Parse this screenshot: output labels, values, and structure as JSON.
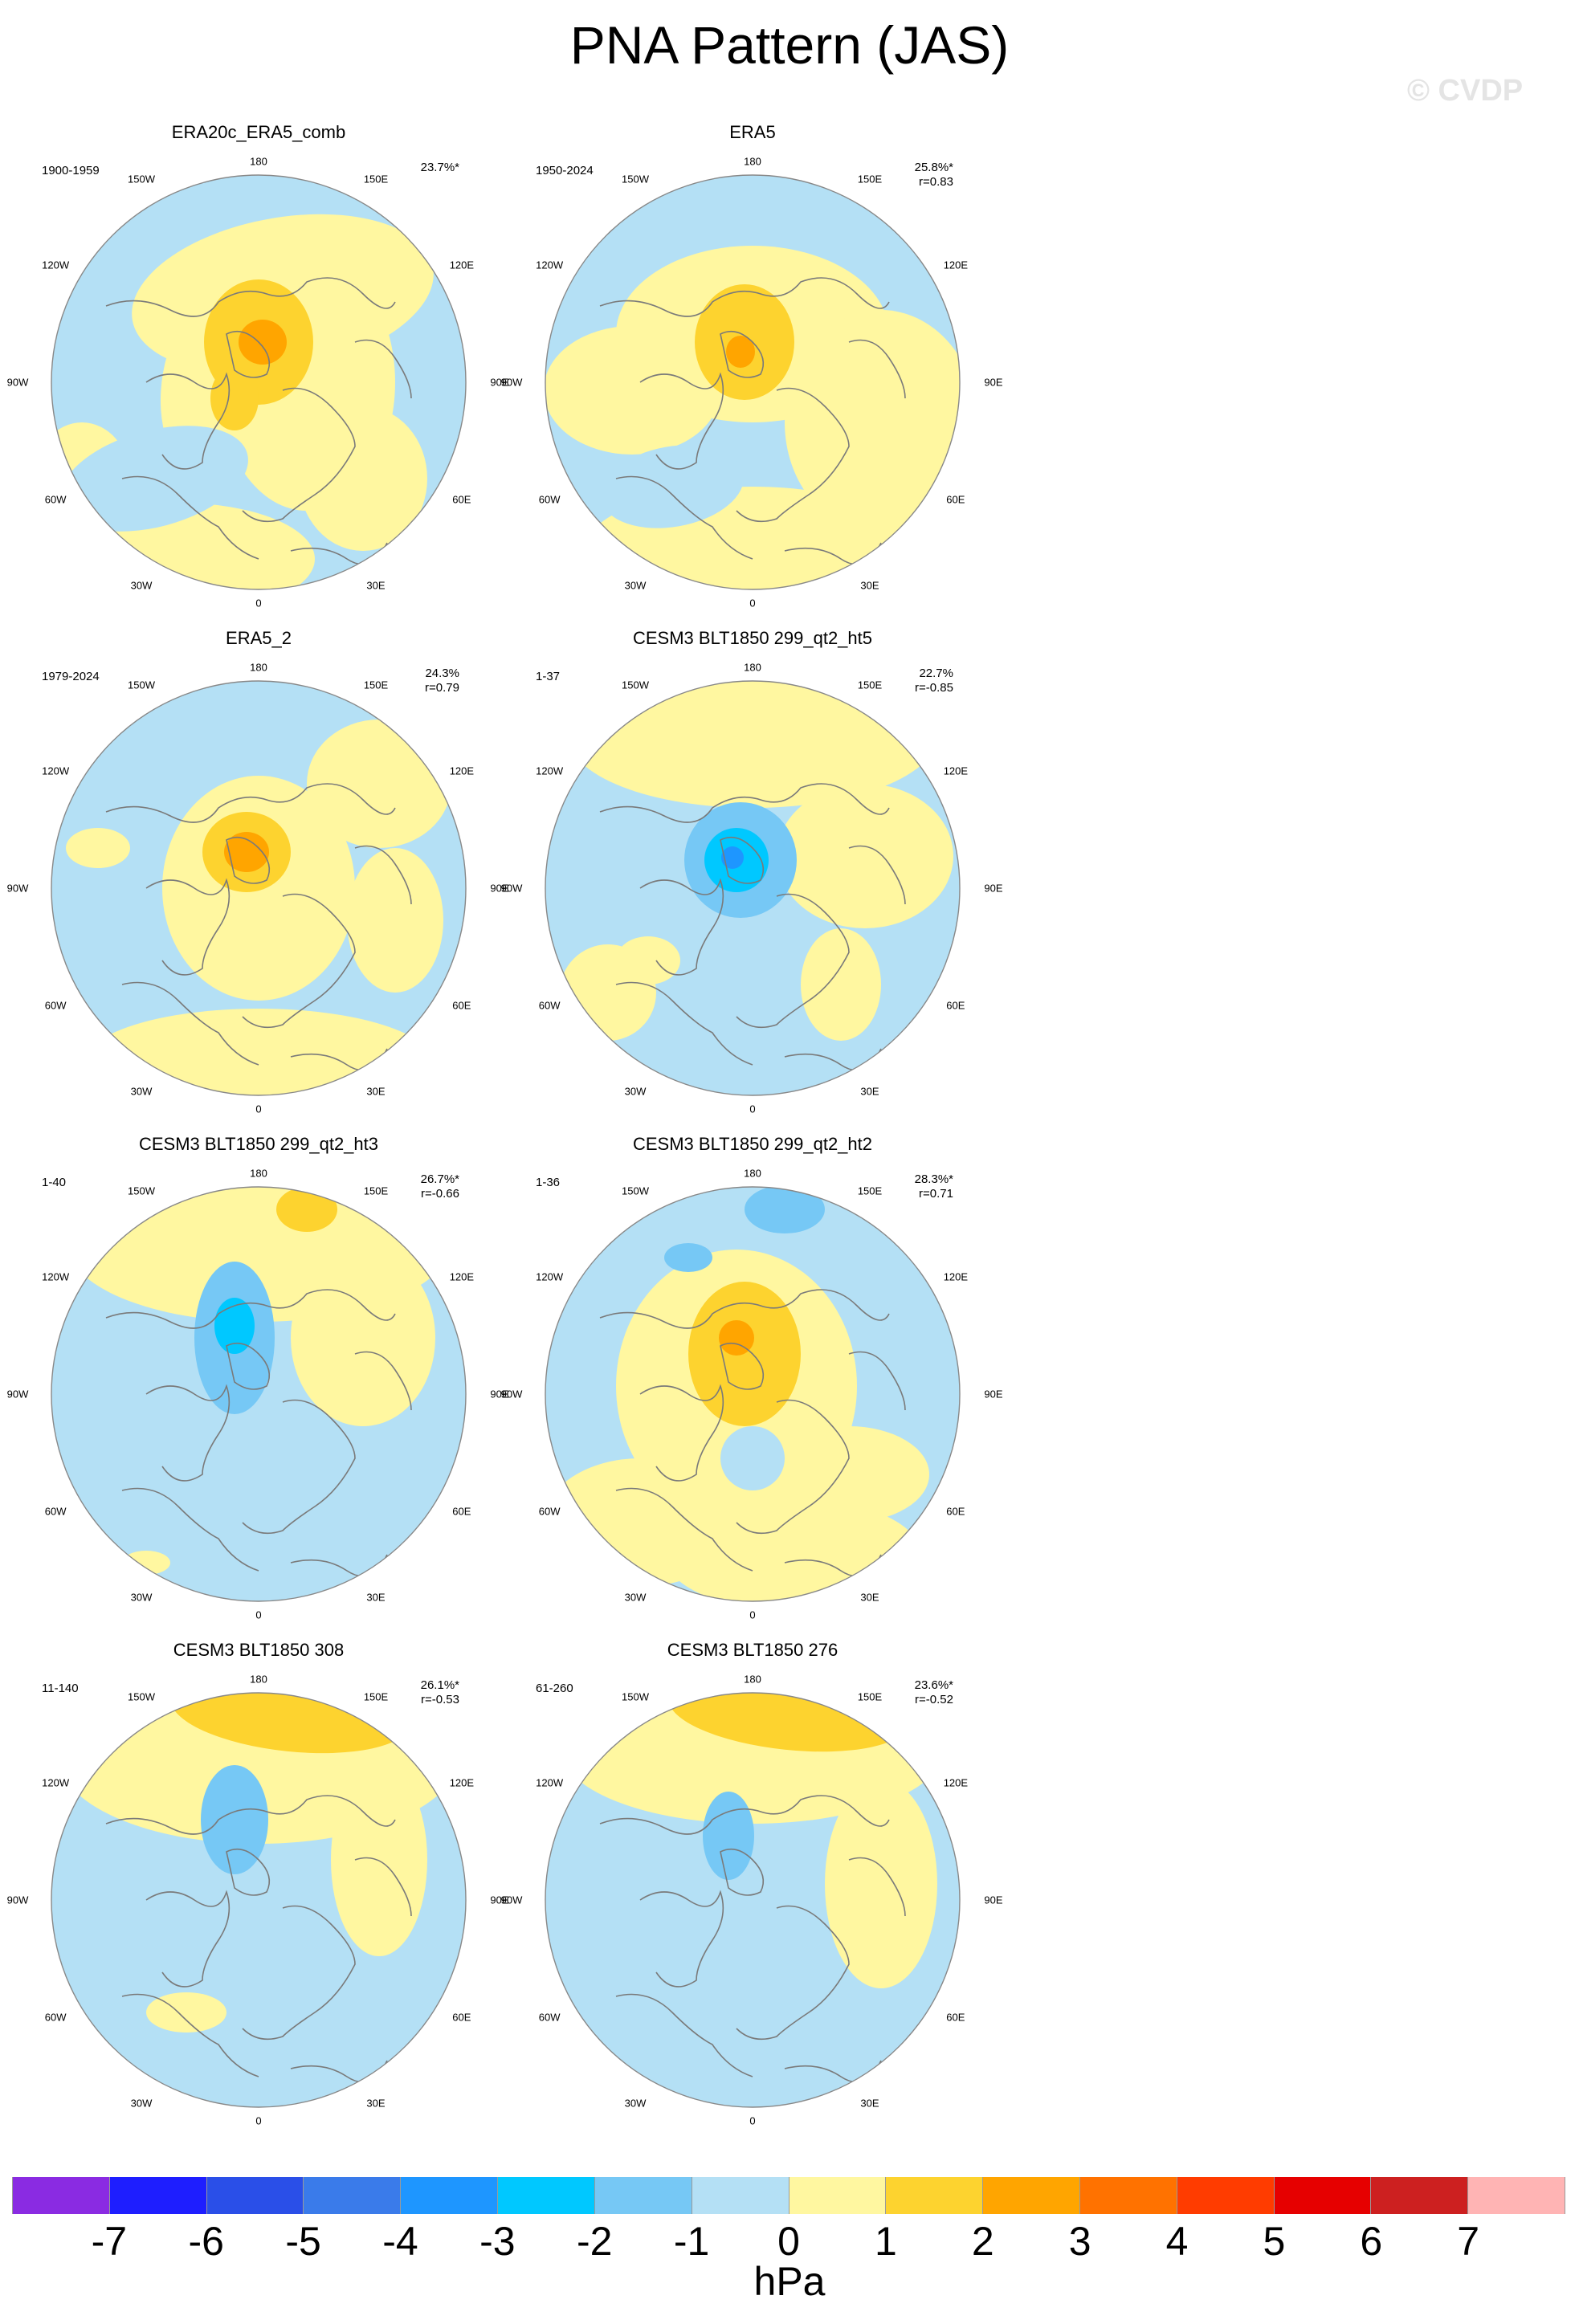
{
  "title": "PNA Pattern (JAS)",
  "watermark": "© CVDP",
  "colors": {
    "fill": [
      "#8a2be2",
      "#1e1eff",
      "#2a4fe8",
      "#3a7bea",
      "#1e96ff",
      "#00c8ff",
      "#76c8f5",
      "#b4e0f5",
      "#fff7a0",
      "#fdd32f",
      "#ffa500",
      "#ff7200",
      "#ff3c00",
      "#e60000",
      "#cd2020",
      "#ffb4b4"
    ],
    "coast": "#7a7a7a",
    "rim": "#888888"
  },
  "colorbar": {
    "labels": [
      "-7",
      "-6",
      "-5",
      "-4",
      "-3",
      "-2",
      "-1",
      "0",
      "1",
      "2",
      "3",
      "4",
      "5",
      "6",
      "7"
    ],
    "units": "hPa"
  },
  "lon_labels": [
    "180",
    "150E",
    "120E",
    "90E",
    "60E",
    "30E",
    "0",
    "30W",
    "60W",
    "90W",
    "120W",
    "150W"
  ],
  "panels": [
    {
      "title": "ERA20c_ERA5_comb",
      "left": "1900-1959",
      "right1": "23.7%*",
      "right2": ""
    },
    {
      "title": "ERA5",
      "left": "1950-2024",
      "right1": "25.8%*",
      "right2": "r=0.83"
    },
    {
      "title": "ERA5_2",
      "left": "1979-2024",
      "right1": "24.3%",
      "right2": "r=0.79"
    },
    {
      "title": "CESM3 BLT1850 299_qt2_ht5",
      "left": "1-37",
      "right1": "22.7%",
      "right2": "r=-0.85"
    },
    {
      "title": "CESM3 BLT1850 299_qt2_ht3",
      "left": "1-40",
      "right1": "26.7%*",
      "right2": "r=-0.66"
    },
    {
      "title": "CESM3 BLT1850 299_qt2_ht2",
      "left": "1-36",
      "right1": "28.3%*",
      "right2": "r=0.71"
    },
    {
      "title": "CESM3 BLT1850 308",
      "left": "11-140",
      "right1": "26.1%*",
      "right2": "r=-0.53"
    },
    {
      "title": "CESM3 BLT1850 276",
      "left": "61-260",
      "right1": "23.6%*",
      "right2": "r=-0.52"
    }
  ]
}
